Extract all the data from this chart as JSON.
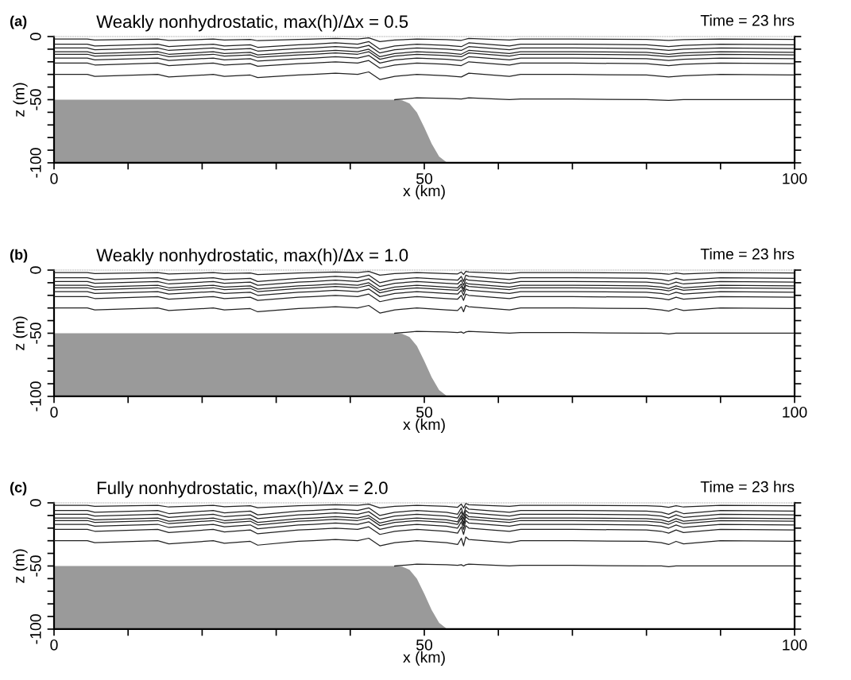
{
  "chart_data": [
    {
      "type": "line",
      "title": "Weakly nonhydrostatic, max(h)/Δx = 0.5",
      "xlabel": "x (km)",
      "ylabel": "z (m)",
      "annotations": [
        "(a)",
        "Time = 23 hrs"
      ],
      "xlim": [
        0,
        100
      ],
      "ylim": [
        -100,
        0
      ],
      "xticks": [
        0,
        {
          "value": 10,
          "label": null
        },
        {
          "value": 20,
          "label": null
        },
        {
          "value": 30,
          "label": null
        },
        {
          "value": 40,
          "label": null
        },
        50,
        {
          "value": 60,
          "label": null
        },
        {
          "value": 70,
          "label": null
        },
        {
          "value": 80,
          "label": null
        },
        {
          "value": 90,
          "label": null
        },
        100
      ],
      "yticks": [
        0,
        {
          "value": -10,
          "label": null
        },
        {
          "value": -20,
          "label": null
        },
        {
          "value": -30,
          "label": null
        },
        {
          "value": -40,
          "label": null
        },
        -50,
        {
          "value": -60,
          "label": null
        },
        {
          "value": -70,
          "label": null
        },
        {
          "value": -80,
          "label": null
        },
        {
          "value": -90,
          "label": null
        },
        -100
      ],
      "grid": false,
      "x": [
        0,
        4.5,
        5.5,
        14,
        15.5,
        21.5,
        23,
        26.5,
        27.5,
        33,
        35,
        38,
        41,
        42.5,
        44,
        46,
        49,
        53,
        55,
        56,
        61.5,
        63,
        70,
        80,
        83,
        85,
        90,
        100
      ],
      "series": [
        {
          "type": "area",
          "color": "#9a9a9a",
          "x": [
            0,
            0,
            46,
            47,
            48,
            49,
            50,
            51,
            52,
            53,
            54,
            100
          ],
          "values": [
            -100,
            -50,
            -50,
            -50.5,
            -53,
            -60,
            -72,
            -85,
            -95,
            -99.5,
            -100,
            -100
          ]
        },
        {
          "color": "#222222",
          "values": [
            -2,
            -2,
            -2.8,
            -2,
            -3,
            -2,
            -2.8,
            -2.3,
            -3.3,
            -2.3,
            -2,
            -1.5,
            -2,
            -1,
            -4,
            -2.8,
            -2,
            -2.5,
            -3,
            -1.5,
            -2.8,
            -2,
            -2,
            -2.3,
            -3,
            -2.5,
            -2,
            -2.3
          ]
        },
        {
          "color": "#222222",
          "values": [
            -6,
            -6,
            -7.5,
            -6,
            -8,
            -6,
            -7.5,
            -6.5,
            -8.5,
            -6.5,
            -6,
            -5,
            -6,
            -4,
            -10,
            -7.5,
            -6,
            -7,
            -8,
            -5,
            -7.5,
            -6,
            -6,
            -6.5,
            -8,
            -7,
            -6,
            -6.5
          ]
        },
        {
          "color": "#222222",
          "values": [
            -9,
            -9,
            -10.5,
            -9,
            -11,
            -9,
            -10.5,
            -9.5,
            -11.5,
            -9.5,
            -9,
            -8,
            -9,
            -7,
            -13,
            -10.5,
            -9,
            -10,
            -11,
            -8,
            -10.5,
            -9,
            -9,
            -9.5,
            -11,
            -10,
            -9,
            -9.5
          ]
        },
        {
          "color": "#222222",
          "values": [
            -12,
            -12,
            -13.5,
            -12,
            -14,
            -12,
            -13.5,
            -12.5,
            -14.5,
            -12.5,
            -12,
            -11,
            -12,
            -10,
            -16,
            -13.5,
            -12,
            -13,
            -14,
            -11,
            -13.5,
            -12,
            -12,
            -12.5,
            -14,
            -13,
            -12,
            -12.5
          ]
        },
        {
          "color": "#222222",
          "values": [
            -14,
            -14,
            -15.5,
            -14,
            -16,
            -14,
            -15.5,
            -14.5,
            -16.5,
            -14.5,
            -14,
            -13,
            -14,
            -12,
            -18,
            -15.5,
            -14,
            -15,
            -16,
            -13,
            -15.5,
            -14,
            -14,
            -14.5,
            -16,
            -15,
            -14,
            -14.5
          ]
        },
        {
          "color": "#222222",
          "values": [
            -17,
            -17,
            -18.5,
            -17,
            -19,
            -17,
            -18.5,
            -17.5,
            -19.5,
            -17.5,
            -17,
            -16,
            -17,
            -15,
            -21,
            -18.5,
            -17,
            -18,
            -19,
            -16,
            -18.5,
            -17,
            -17,
            -17.5,
            -19,
            -18,
            -17,
            -17.5
          ]
        },
        {
          "color": "#222222",
          "values": [
            -21,
            -21,
            -22.5,
            -21,
            -23,
            -21,
            -22.5,
            -21.5,
            -23.5,
            -21.5,
            -21,
            -20,
            -21,
            -19,
            -25,
            -22.5,
            -21,
            -22,
            -23,
            -20,
            -22.5,
            -21,
            -21,
            -21.5,
            -23,
            -22,
            -21,
            -21.5
          ]
        },
        {
          "color": "#222222",
          "values": [
            -30,
            -30,
            -31.5,
            -30,
            -32,
            -30,
            -31.5,
            -30.5,
            -32.5,
            -30.5,
            -30,
            -29,
            -30,
            -28,
            -34,
            -31.5,
            -30,
            -31,
            -32,
            -29,
            -31.5,
            -30,
            -30,
            -30.5,
            -32,
            -31,
            -30,
            -30.5
          ]
        },
        {
          "color": "#222222",
          "values": [
            null,
            null,
            null,
            null,
            null,
            null,
            null,
            null,
            null,
            null,
            null,
            null,
            null,
            null,
            null,
            -50,
            -48.5,
            -49,
            -49.5,
            -48.5,
            -50,
            -49.5,
            -49.5,
            -50,
            -50.5,
            -50,
            -50,
            -50
          ]
        }
      ]
    },
    {
      "type": "line",
      "title": "Weakly nonhydrostatic, max(h)/Δx = 1.0",
      "xlabel": "x (km)",
      "ylabel": "z (m)",
      "annotations": [
        "(b)",
        "Time = 23 hrs"
      ],
      "xlim": [
        0,
        100
      ],
      "ylim": [
        -100,
        0
      ],
      "xticks": [
        0,
        {
          "value": 10,
          "label": null
        },
        {
          "value": 20,
          "label": null
        },
        {
          "value": 30,
          "label": null
        },
        {
          "value": 40,
          "label": null
        },
        50,
        {
          "value": 60,
          "label": null
        },
        {
          "value": 70,
          "label": null
        },
        {
          "value": 80,
          "label": null
        },
        {
          "value": 90,
          "label": null
        },
        100
      ],
      "yticks": [
        0,
        {
          "value": -10,
          "label": null
        },
        {
          "value": -20,
          "label": null
        },
        {
          "value": -30,
          "label": null
        },
        {
          "value": -40,
          "label": null
        },
        -50,
        {
          "value": -60,
          "label": null
        },
        {
          "value": -70,
          "label": null
        },
        {
          "value": -80,
          "label": null
        },
        {
          "value": -90,
          "label": null
        },
        -100
      ],
      "grid": false,
      "x": [
        0,
        4.5,
        5.5,
        14,
        15.5,
        21.5,
        23,
        26.5,
        27.5,
        33,
        35,
        38,
        41,
        42.5,
        44,
        46,
        49,
        53,
        54.5,
        55,
        55.3,
        55.6,
        56,
        61.5,
        63,
        70,
        80,
        82,
        83,
        84,
        85,
        90,
        100
      ],
      "series": [
        {
          "type": "area",
          "color": "#9a9a9a",
          "x": [
            0,
            0,
            46,
            47,
            48,
            49,
            50,
            51,
            52,
            53,
            54,
            100
          ],
          "values": [
            -100,
            -50,
            -50,
            -50.5,
            -53,
            -60,
            -72,
            -85,
            -95,
            -99.5,
            -100,
            -100
          ]
        },
        {
          "color": "#222222",
          "values": [
            -2,
            -2,
            -2.8,
            -2,
            -3,
            -2,
            -2.8,
            -2.3,
            -3.5,
            -2.3,
            -2,
            -1.5,
            -2,
            -1,
            -4,
            -2.8,
            -2,
            -2.8,
            -3,
            -1.5,
            -3.5,
            -1,
            -1.5,
            -2.8,
            -2,
            -2,
            -2.3,
            -2.8,
            -3.3,
            -2.3,
            -3,
            -2,
            -2.3
          ]
        },
        {
          "color": "#222222",
          "values": [
            -6,
            -6,
            -7.5,
            -6,
            -8,
            -6,
            -7.5,
            -6.5,
            -9,
            -6.5,
            -6,
            -5,
            -6,
            -4,
            -10,
            -7.5,
            -6,
            -7.5,
            -8,
            -5,
            -9,
            -4,
            -5,
            -7.5,
            -6,
            -6,
            -6.5,
            -7.5,
            -8.5,
            -6.5,
            -8,
            -6,
            -6.5
          ]
        },
        {
          "color": "#222222",
          "values": [
            -9,
            -9,
            -10.5,
            -9,
            -11,
            -9,
            -10.5,
            -9.5,
            -12,
            -9.5,
            -9,
            -8,
            -9,
            -7,
            -13,
            -10.5,
            -9,
            -10.5,
            -11,
            -8,
            -12,
            -7,
            -8,
            -10.5,
            -9,
            -9,
            -9.5,
            -10.5,
            -11.5,
            -9.5,
            -11,
            -9,
            -9.5
          ]
        },
        {
          "color": "#222222",
          "values": [
            -12,
            -12,
            -13.5,
            -12,
            -14,
            -12,
            -13.5,
            -12.5,
            -15,
            -12.5,
            -12,
            -11,
            -12,
            -10,
            -16,
            -13.5,
            -12,
            -13.5,
            -14,
            -11,
            -15,
            -10,
            -11,
            -13.5,
            -12,
            -12,
            -12.5,
            -13.5,
            -14.5,
            -12.5,
            -14,
            -12,
            -12.5
          ]
        },
        {
          "color": "#222222",
          "values": [
            -14,
            -14,
            -15.5,
            -14,
            -16,
            -14,
            -15.5,
            -14.5,
            -17,
            -14.5,
            -14,
            -13,
            -14,
            -12,
            -18,
            -15.5,
            -14,
            -15.5,
            -16,
            -13,
            -17,
            -12,
            -13,
            -15.5,
            -14,
            -14,
            -14.5,
            -15.5,
            -16.5,
            -14.5,
            -16,
            -14,
            -14.5
          ]
        },
        {
          "color": "#222222",
          "values": [
            -17,
            -17,
            -18.5,
            -17,
            -19,
            -17,
            -18.5,
            -17.5,
            -20,
            -17.5,
            -17,
            -16,
            -17,
            -15,
            -21,
            -18.5,
            -17,
            -18.5,
            -19,
            -16,
            -20,
            -15,
            -16,
            -18.5,
            -17,
            -17,
            -17.5,
            -18.5,
            -19.5,
            -17.5,
            -19,
            -17,
            -17.5
          ]
        },
        {
          "color": "#222222",
          "values": [
            -21,
            -21,
            -22.5,
            -21,
            -23,
            -21,
            -22.5,
            -21.5,
            -24,
            -21.5,
            -21,
            -20,
            -21,
            -19,
            -25,
            -22.5,
            -21,
            -22.5,
            -23,
            -20,
            -24,
            -19,
            -20,
            -22.5,
            -21,
            -21,
            -21.5,
            -22.5,
            -23.5,
            -21.5,
            -23,
            -21,
            -21.5
          ]
        },
        {
          "color": "#222222",
          "values": [
            -30,
            -30,
            -31.5,
            -30,
            -32,
            -30,
            -31.5,
            -30.5,
            -33,
            -30.5,
            -30,
            -29,
            -30,
            -28,
            -34,
            -31.5,
            -30,
            -31.5,
            -32,
            -29,
            -33,
            -28,
            -29,
            -31.5,
            -30,
            -30,
            -30.5,
            -31.5,
            -32.5,
            -30.5,
            -32,
            -30,
            -30.5
          ]
        },
        {
          "color": "#222222",
          "values": [
            null,
            null,
            null,
            null,
            null,
            null,
            null,
            null,
            null,
            null,
            null,
            null,
            null,
            null,
            null,
            -50,
            -48.5,
            -49,
            -49.5,
            -49,
            -50,
            -49,
            -48.5,
            -50,
            -49.5,
            -49.5,
            -50,
            -50,
            -50.5,
            -50,
            -50,
            -50,
            -50
          ]
        }
      ]
    },
    {
      "type": "line",
      "title": "Fully nonhydrostatic, max(h)/Δx = 2.0",
      "xlabel": "x (km)",
      "ylabel": "z (m)",
      "annotations": [
        "(c)",
        "Time = 23 hrs"
      ],
      "xlim": [
        0,
        100
      ],
      "ylim": [
        -100,
        0
      ],
      "xticks": [
        0,
        {
          "value": 10,
          "label": null
        },
        {
          "value": 20,
          "label": null
        },
        {
          "value": 30,
          "label": null
        },
        {
          "value": 40,
          "label": null
        },
        50,
        {
          "value": 60,
          "label": null
        },
        {
          "value": 70,
          "label": null
        },
        {
          "value": 80,
          "label": null
        },
        {
          "value": 90,
          "label": null
        },
        100
      ],
      "yticks": [
        0,
        {
          "value": -10,
          "label": null
        },
        {
          "value": -20,
          "label": null
        },
        {
          "value": -30,
          "label": null
        },
        {
          "value": -40,
          "label": null
        },
        -50,
        {
          "value": -60,
          "label": null
        },
        {
          "value": -70,
          "label": null
        },
        {
          "value": -80,
          "label": null
        },
        {
          "value": -90,
          "label": null
        },
        -100
      ],
      "grid": false,
      "x": [
        0,
        4.5,
        5.5,
        14,
        15.5,
        21.5,
        23,
        26.5,
        27.5,
        33,
        35,
        38,
        41,
        42.5,
        44,
        46,
        49,
        53,
        54.5,
        55,
        55.3,
        55.6,
        56,
        61.5,
        63,
        70,
        80,
        82,
        83,
        84,
        85,
        90,
        100
      ],
      "series": [
        {
          "type": "area",
          "color": "#9a9a9a",
          "x": [
            0,
            0,
            46,
            47,
            48,
            49,
            50,
            51,
            52,
            53,
            54,
            100
          ],
          "values": [
            -100,
            -50,
            -50,
            -50.5,
            -53,
            -60,
            -72,
            -85,
            -95,
            -99.5,
            -100,
            -100
          ]
        },
        {
          "color": "#222222",
          "values": [
            -2,
            -2,
            -2.8,
            -2,
            -3.3,
            -2,
            -3,
            -2.3,
            -3.8,
            -2.3,
            -2,
            -1.5,
            -2,
            -1,
            -4,
            -2.8,
            -2,
            -2.8,
            -3.5,
            -1,
            -4,
            -0.5,
            -1.5,
            -2.8,
            -2,
            -2,
            -2.3,
            -2.8,
            -3.5,
            -2.3,
            -3.3,
            -2,
            -2.3
          ]
        },
        {
          "color": "#222222",
          "values": [
            -6,
            -6,
            -7.5,
            -6,
            -8.5,
            -6,
            -8,
            -6.5,
            -9.5,
            -6.5,
            -6,
            -5,
            -6,
            -4,
            -10,
            -7.5,
            -6,
            -7.5,
            -9,
            -4,
            -10,
            -3,
            -5,
            -7.5,
            -6,
            -6,
            -6.5,
            -7.5,
            -9,
            -6.5,
            -8.5,
            -6,
            -6.5
          ]
        },
        {
          "color": "#222222",
          "values": [
            -9,
            -9,
            -10.5,
            -9,
            -11.5,
            -9,
            -11,
            -9.5,
            -12.5,
            -9.5,
            -9,
            -8,
            -9,
            -7,
            -13,
            -10.5,
            -9,
            -10.5,
            -12,
            -7,
            -13,
            -6,
            -8,
            -10.5,
            -9,
            -9,
            -9.5,
            -10.5,
            -12,
            -9.5,
            -11.5,
            -9,
            -9.5
          ]
        },
        {
          "color": "#222222",
          "values": [
            -12,
            -12,
            -13.5,
            -12,
            -14.5,
            -12,
            -14,
            -12.5,
            -15.5,
            -12.5,
            -12,
            -11,
            -12,
            -10,
            -16,
            -13.5,
            -12,
            -13.5,
            -15,
            -10,
            -16,
            -9,
            -11,
            -13.5,
            -12,
            -12,
            -12.5,
            -13.5,
            -15,
            -12.5,
            -14.5,
            -12,
            -12.5
          ]
        },
        {
          "color": "#222222",
          "values": [
            -14,
            -14,
            -15.5,
            -14,
            -16.5,
            -14,
            -16,
            -14.5,
            -17.5,
            -14.5,
            -14,
            -13,
            -14,
            -12,
            -18,
            -15.5,
            -14,
            -15.5,
            -17,
            -12,
            -18,
            -11,
            -13,
            -15.5,
            -14,
            -14,
            -14.5,
            -15.5,
            -17,
            -14.5,
            -16.5,
            -14,
            -14.5
          ]
        },
        {
          "color": "#222222",
          "values": [
            -17,
            -17,
            -18.5,
            -17,
            -19.5,
            -17,
            -19,
            -17.5,
            -20.5,
            -17.5,
            -17,
            -16,
            -17,
            -15,
            -21,
            -18.5,
            -17,
            -18.5,
            -20,
            -15,
            -21,
            -14,
            -16,
            -18.5,
            -17,
            -17,
            -17.5,
            -18.5,
            -20,
            -17.5,
            -19.5,
            -17,
            -17.5
          ]
        },
        {
          "color": "#222222",
          "values": [
            -21,
            -21,
            -22.5,
            -21,
            -23.5,
            -21,
            -23,
            -21.5,
            -24.5,
            -21.5,
            -21,
            -20,
            -21,
            -19,
            -25,
            -22.5,
            -21,
            -22.5,
            -24,
            -19,
            -25,
            -18,
            -20,
            -22.5,
            -21,
            -21,
            -21.5,
            -22.5,
            -24,
            -21.5,
            -23.5,
            -21,
            -21.5
          ]
        },
        {
          "color": "#222222",
          "values": [
            -30,
            -30,
            -31.5,
            -30,
            -32.5,
            -30,
            -32,
            -30.5,
            -33.5,
            -30.5,
            -30,
            -29,
            -30,
            -28,
            -34,
            -31.5,
            -30,
            -31.5,
            -33,
            -28,
            -34,
            -27,
            -29,
            -31.5,
            -30,
            -30,
            -30.5,
            -31.5,
            -33,
            -30.5,
            -32.5,
            -30,
            -30.5
          ]
        },
        {
          "color": "#222222",
          "values": [
            null,
            null,
            null,
            null,
            null,
            null,
            null,
            null,
            null,
            null,
            null,
            null,
            null,
            null,
            null,
            -50,
            -48.5,
            -49,
            -49.5,
            -49,
            -50,
            -49,
            -48.5,
            -50,
            -49.5,
            -49.5,
            -50,
            -50,
            -50.5,
            -50,
            -50,
            -50,
            -50
          ]
        }
      ]
    }
  ]
}
